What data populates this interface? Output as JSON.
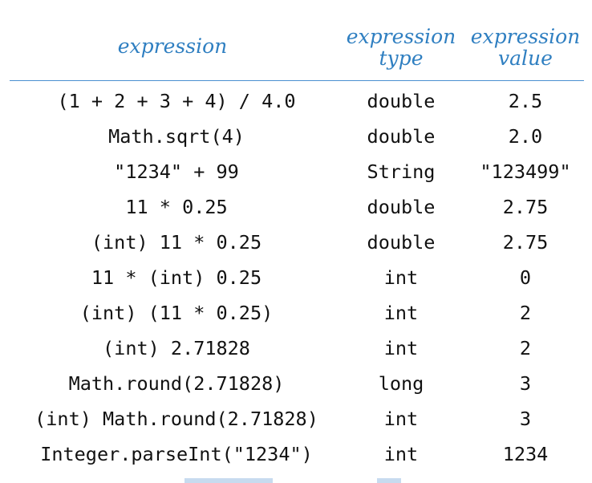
{
  "header": {
    "expression": "expression",
    "type_line1": "expression",
    "type_line2": "type",
    "value_line1": "expression",
    "value_line2": "value"
  },
  "rows": [
    {
      "expression": "(1 + 2 + 3 + 4) / 4.0",
      "type": "double",
      "value": "2.5"
    },
    {
      "expression": "Math.sqrt(4)",
      "type": "double",
      "value": "2.0"
    },
    {
      "expression": "\"1234\" + 99",
      "type": "String",
      "value": "\"123499\""
    },
    {
      "expression": "11 * 0.25",
      "type": "double",
      "value": "2.75"
    },
    {
      "expression": "(int) 11 * 0.25",
      "type": "double",
      "value": "2.75"
    },
    {
      "expression": "11 * (int) 0.25",
      "type": "int",
      "value": "0"
    },
    {
      "expression": "(int) (11 * 0.25)",
      "type": "int",
      "value": "2"
    },
    {
      "expression": "(int) 2.71828",
      "type": "int",
      "value": "2"
    },
    {
      "expression": "Math.round(2.71828)",
      "type": "long",
      "value": "3"
    },
    {
      "expression": "(int) Math.round(2.71828)",
      "type": "int",
      "value": "3"
    },
    {
      "expression": "Integer.parseInt(\"1234\")",
      "type": "int",
      "value": "1234"
    }
  ],
  "colors": {
    "header": "#2f7fc1",
    "rule": "#4a90d0",
    "text": "#111111"
  }
}
